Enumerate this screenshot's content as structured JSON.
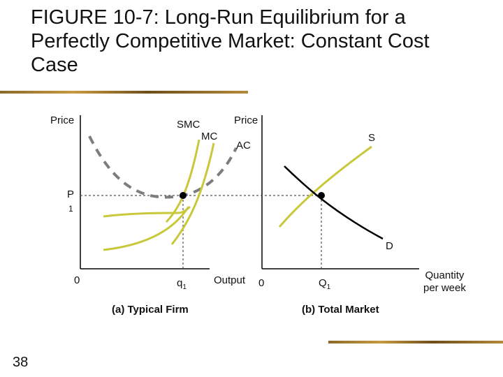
{
  "title": "FIGURE 10-7: Long-Run Equilibrium for a Perfectly Competitive Market: Constant Cost Case",
  "slide_number": "38",
  "left_panel": {
    "y_axis_label": "Price",
    "price_label_line1": "P",
    "price_label_line2": "1",
    "origin_label": "0",
    "q_label": "q",
    "q_sub": "1",
    "x_axis_label": "Output",
    "caption": "(a) Typical Firm",
    "curves": {
      "smc": "SMC",
      "mc": "MC",
      "ac": "AC"
    }
  },
  "right_panel": {
    "y_axis_label": "Price",
    "origin_label": "0",
    "q_label": "Q",
    "q_sub": "1",
    "x_axis_label_line1": "Quantity",
    "x_axis_label_line2": "per week",
    "caption": "(b) Total Market",
    "curves": {
      "supply": "S",
      "demand": "D"
    }
  },
  "colors": {
    "cost_curve": "#c8c83a",
    "dashed_curve": "#7d7d7d",
    "demand": "#000000",
    "rule": "#a07a30"
  }
}
